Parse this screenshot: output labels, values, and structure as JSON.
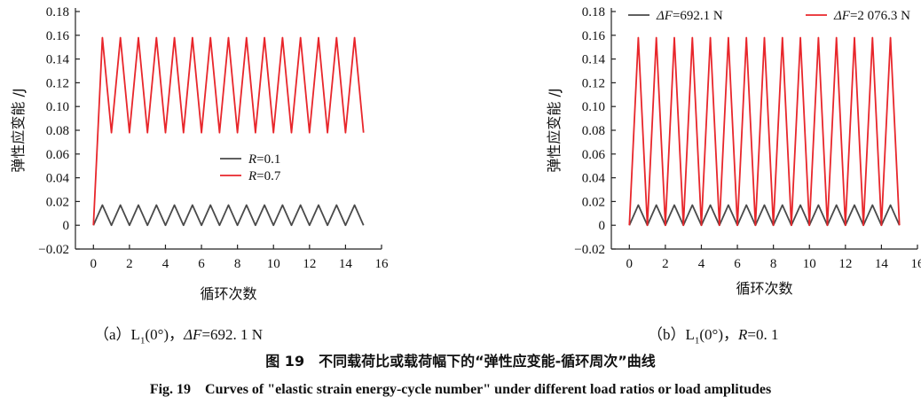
{
  "chart_data": [
    {
      "type": "line",
      "xlabel": "循环次数",
      "ylabel": "弹性应变能 /J",
      "xlim": [
        -1,
        16
      ],
      "ylim": [
        -0.02,
        0.18
      ],
      "xticks": [
        "0",
        "2",
        "4",
        "6",
        "8",
        "10",
        "12",
        "14",
        "16"
      ],
      "yticks": [
        "−0.02",
        "0",
        "0.02",
        "0.04",
        "0.06",
        "0.08",
        "0.10",
        "0.12",
        "0.14",
        "0.16",
        "0.18"
      ],
      "legend_position": "center-right",
      "series": [
        {
          "name": "R=0.1",
          "name_prefix": "R",
          "name_value": "=0.1",
          "color": "#4a4a4a",
          "x": [
            0,
            0.5,
            1,
            1.5,
            2,
            2.5,
            3,
            3.5,
            4,
            4.5,
            5,
            5.5,
            6,
            6.5,
            7,
            7.5,
            8,
            8.5,
            9,
            9.5,
            10,
            10.5,
            11,
            11.5,
            12,
            12.5,
            13,
            13.5,
            14,
            14.5,
            15
          ],
          "y": [
            0,
            0.017,
            0,
            0.017,
            0,
            0.017,
            0,
            0.017,
            0,
            0.017,
            0,
            0.017,
            0,
            0.017,
            0,
            0.017,
            0,
            0.017,
            0,
            0.017,
            0,
            0.017,
            0,
            0.017,
            0,
            0.017,
            0,
            0.017,
            0,
            0.017,
            0
          ]
        },
        {
          "name": "R=0.7",
          "name_prefix": "R",
          "name_value": "=0.7",
          "color": "#e8262b",
          "x": [
            0,
            0.5,
            1,
            1.5,
            2,
            2.5,
            3,
            3.5,
            4,
            4.5,
            5,
            5.5,
            6,
            6.5,
            7,
            7.5,
            8,
            8.5,
            9,
            9.5,
            10,
            10.5,
            11,
            11.5,
            12,
            12.5,
            13,
            13.5,
            14,
            14.5,
            15
          ],
          "y": [
            0,
            0.158,
            0.078,
            0.158,
            0.078,
            0.158,
            0.078,
            0.158,
            0.078,
            0.158,
            0.078,
            0.158,
            0.078,
            0.158,
            0.078,
            0.158,
            0.078,
            0.158,
            0.078,
            0.158,
            0.078,
            0.158,
            0.078,
            0.158,
            0.078,
            0.158,
            0.078,
            0.158,
            0.078,
            0.158,
            0.078
          ]
        }
      ]
    },
    {
      "type": "line",
      "xlabel": "循环次数",
      "ylabel": "弹性应变能 /J",
      "xlim": [
        -1,
        16
      ],
      "ylim": [
        -0.02,
        0.18
      ],
      "xticks": [
        "0",
        "2",
        "4",
        "6",
        "8",
        "10",
        "12",
        "14",
        "16"
      ],
      "yticks": [
        "−0.02",
        "0",
        "0.02",
        "0.04",
        "0.06",
        "0.08",
        "0.10",
        "0.12",
        "0.14",
        "0.16",
        "0.18"
      ],
      "legend_position": "top",
      "series": [
        {
          "name": "ΔF=692.1 N",
          "name_prefix": "ΔF",
          "name_value": "=692.1 N",
          "color": "#4a4a4a",
          "x": [
            0,
            0.5,
            1,
            1.5,
            2,
            2.5,
            3,
            3.5,
            4,
            4.5,
            5,
            5.5,
            6,
            6.5,
            7,
            7.5,
            8,
            8.5,
            9,
            9.5,
            10,
            10.5,
            11,
            11.5,
            12,
            12.5,
            13,
            13.5,
            14,
            14.5,
            15
          ],
          "y": [
            0,
            0.017,
            0,
            0.017,
            0,
            0.017,
            0,
            0.017,
            0,
            0.017,
            0,
            0.017,
            0,
            0.017,
            0,
            0.017,
            0,
            0.017,
            0,
            0.017,
            0,
            0.017,
            0,
            0.017,
            0,
            0.017,
            0,
            0.017,
            0,
            0.017,
            0
          ]
        },
        {
          "name": "ΔF=2 076.3 N",
          "name_prefix": "ΔF",
          "name_value": "=2 076.3 N",
          "color": "#e8262b",
          "x": [
            0,
            0.5,
            1,
            1.5,
            2,
            2.5,
            3,
            3.5,
            4,
            4.5,
            5,
            5.5,
            6,
            6.5,
            7,
            7.5,
            8,
            8.5,
            9,
            9.5,
            10,
            10.5,
            11,
            11.5,
            12,
            12.5,
            13,
            13.5,
            14,
            14.5,
            15
          ],
          "y": [
            0,
            0.158,
            0,
            0.158,
            0,
            0.158,
            0,
            0.158,
            0,
            0.158,
            0,
            0.158,
            0,
            0.158,
            0,
            0.158,
            0,
            0.158,
            0,
            0.158,
            0,
            0.158,
            0,
            0.158,
            0,
            0.158,
            0,
            0.158,
            0,
            0.158,
            0
          ]
        }
      ]
    }
  ],
  "subcaptions": {
    "a": {
      "prefix": "（a）L",
      "sub": "1",
      "angle": "(0°)，",
      "var": "ΔF",
      "value": "=692. 1 N"
    },
    "b": {
      "prefix": "（b）L",
      "sub": "1",
      "angle": "(0°)，",
      "var": "R",
      "value": "=0. 1"
    }
  },
  "caption": {
    "zh": "图 19　不同载荷比或载荷幅下的“弹性应变能-循环周次”曲线",
    "en": "Fig. 19　Curves of \"elastic strain energy-cycle number\" under different load ratios or load amplitudes"
  }
}
